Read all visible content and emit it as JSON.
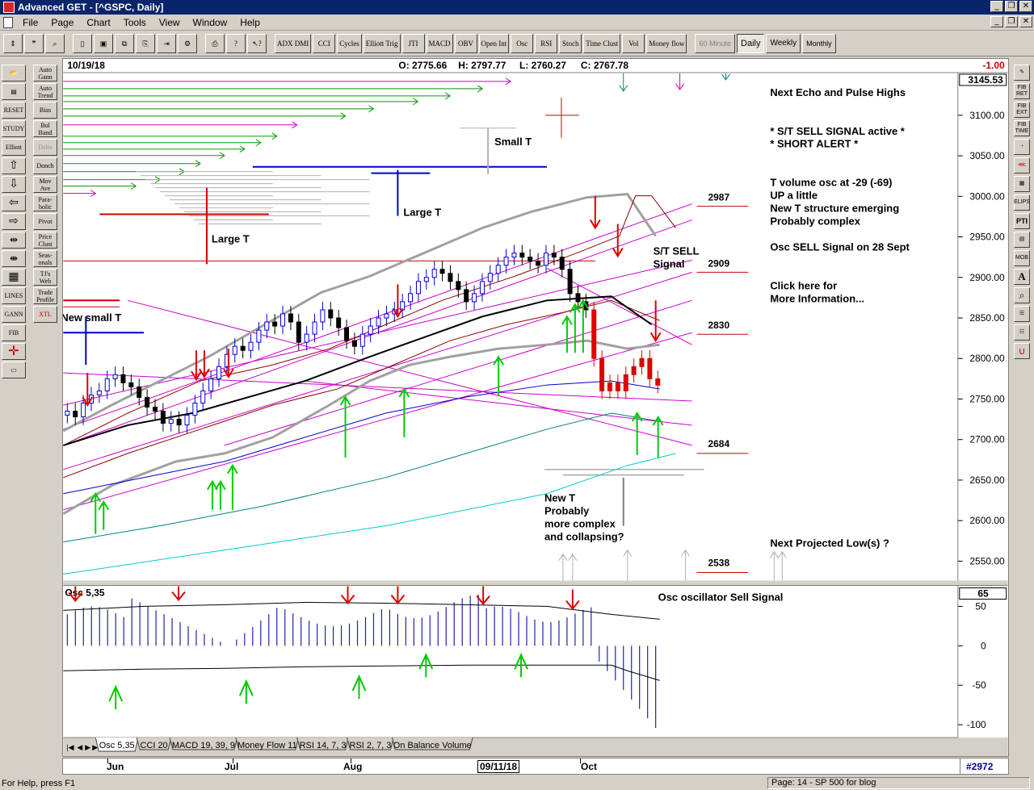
{
  "window": {
    "title": "Advanced GET - [^GSPC, Daily]"
  },
  "menu": [
    "File",
    "Page",
    "Chart",
    "Tools",
    "View",
    "Window",
    "Help"
  ],
  "toolbar": {
    "indicators": [
      "ADX DMI",
      "CCI",
      "Cycles",
      "Elliott Trig",
      "JTI",
      "MACD",
      "OBV",
      "Open Int",
      "Osc",
      "RSI",
      "Stoch",
      "Time Clust",
      "Vol",
      "Money flow"
    ],
    "periods": [
      "60 Minute",
      "Daily",
      "Weekly",
      "Monthly"
    ],
    "active_period": "Daily"
  },
  "left_tools": [
    "Auto Gann",
    "Auto Trend",
    "Bias",
    "Bol Band",
    "Delta",
    "Donch",
    "Mov Ave",
    "Para-bolic",
    "Pivot",
    "Price Clust",
    "Seas-onals",
    "TJ's Web",
    "Trade Profile",
    "XTL"
  ],
  "left_icons": [
    "open-icon",
    "page-icon",
    "reset-icon",
    "study-icon",
    "elliott-icon",
    "arrow-up-icon",
    "arrow-down-icon",
    "arrow-left-icon",
    "arrow-right-icon",
    "expand-icon",
    "compress-icon",
    "grid-icon",
    "lines-icon",
    "gann-icon",
    "fib-icon",
    "cross-icon",
    "properties-icon"
  ],
  "left_icon_labels": {
    "reset": "RESET",
    "study": "STUDY",
    "elliott": "Elliott",
    "lines": "LINES",
    "gann": "GANN",
    "fib": "FIB"
  },
  "right_tools": [
    "pencil-icon",
    "FIB RET",
    "FIB EXT",
    "FIB TIME",
    "fan-icon",
    "fan-left-icon",
    "grid-icon",
    "ELIPS",
    "PTI",
    "grid2-icon",
    "MOB",
    "A",
    "magnify-icon",
    "list-icon",
    "list2-icon",
    "magnet-icon"
  ],
  "header": {
    "date": "10/19/18",
    "open": "O: 2775.66",
    "high": "H: 2797.77",
    "low": "L: 2760.27",
    "close": "C: 2767.78",
    "change": "-1.00"
  },
  "price_axis": {
    "current": "3145.53",
    "ticks": [
      "3100.00",
      "3050.00",
      "3000.00",
      "2950.00",
      "2900.00",
      "2850.00",
      "2800.00",
      "2750.00",
      "2700.00",
      "2650.00",
      "2600.00",
      "2550.00"
    ]
  },
  "annotations": {
    "notes": [
      "Next Echo and Pulse Highs",
      "* S/T SELL SIGNAL active *",
      "* SHORT ALERT *",
      "T volume osc at -29 (-69)",
      "UP a little",
      "New T structure emerging",
      "Probably complex",
      "Osc SELL Signal on 28 Sept",
      "Click here for",
      "More Information..."
    ],
    "next_low": "Next Projected Low(s) ?",
    "levels": [
      "2987",
      "2909",
      "2830",
      "2684",
      "2538"
    ],
    "small_t": "Small T",
    "large_t_1": "Large T",
    "large_t_2": "Large T",
    "new_small_t": "New small T",
    "st_sell": [
      "S/T SELL",
      "Signal"
    ],
    "new_t": [
      "New T",
      "Probably",
      "more complex",
      "and collapsing?"
    ]
  },
  "oscillator": {
    "name": "Osc 5,35",
    "value": "65",
    "note": "Osc oscillator Sell Signal",
    "ticks": [
      "50",
      "0",
      "-50",
      "-100"
    ]
  },
  "tabs": [
    "Osc 5,35",
    "CCI 20",
    "MACD 19, 39, 9",
    "Money Flow 11",
    "RSI 14, 7, 3",
    "RSI 2, 7, 3",
    "On Balance Volume"
  ],
  "active_tab": "Osc 5,35",
  "time_axis": {
    "labels": [
      "Jun",
      "Jul",
      "Aug",
      "Oct"
    ],
    "cursor_date": "09/11/18",
    "bar_number": "#2972"
  },
  "status": {
    "left": "For Help, press F1",
    "right": "Page: 14 - SP 500 for blog"
  },
  "colors": {
    "title_bar": "#0a246a",
    "up_arrow": "#00cc00",
    "down_arrow": "#dd0000",
    "magenta": "#cc00cc",
    "osc_bars": "#2020b0"
  }
}
